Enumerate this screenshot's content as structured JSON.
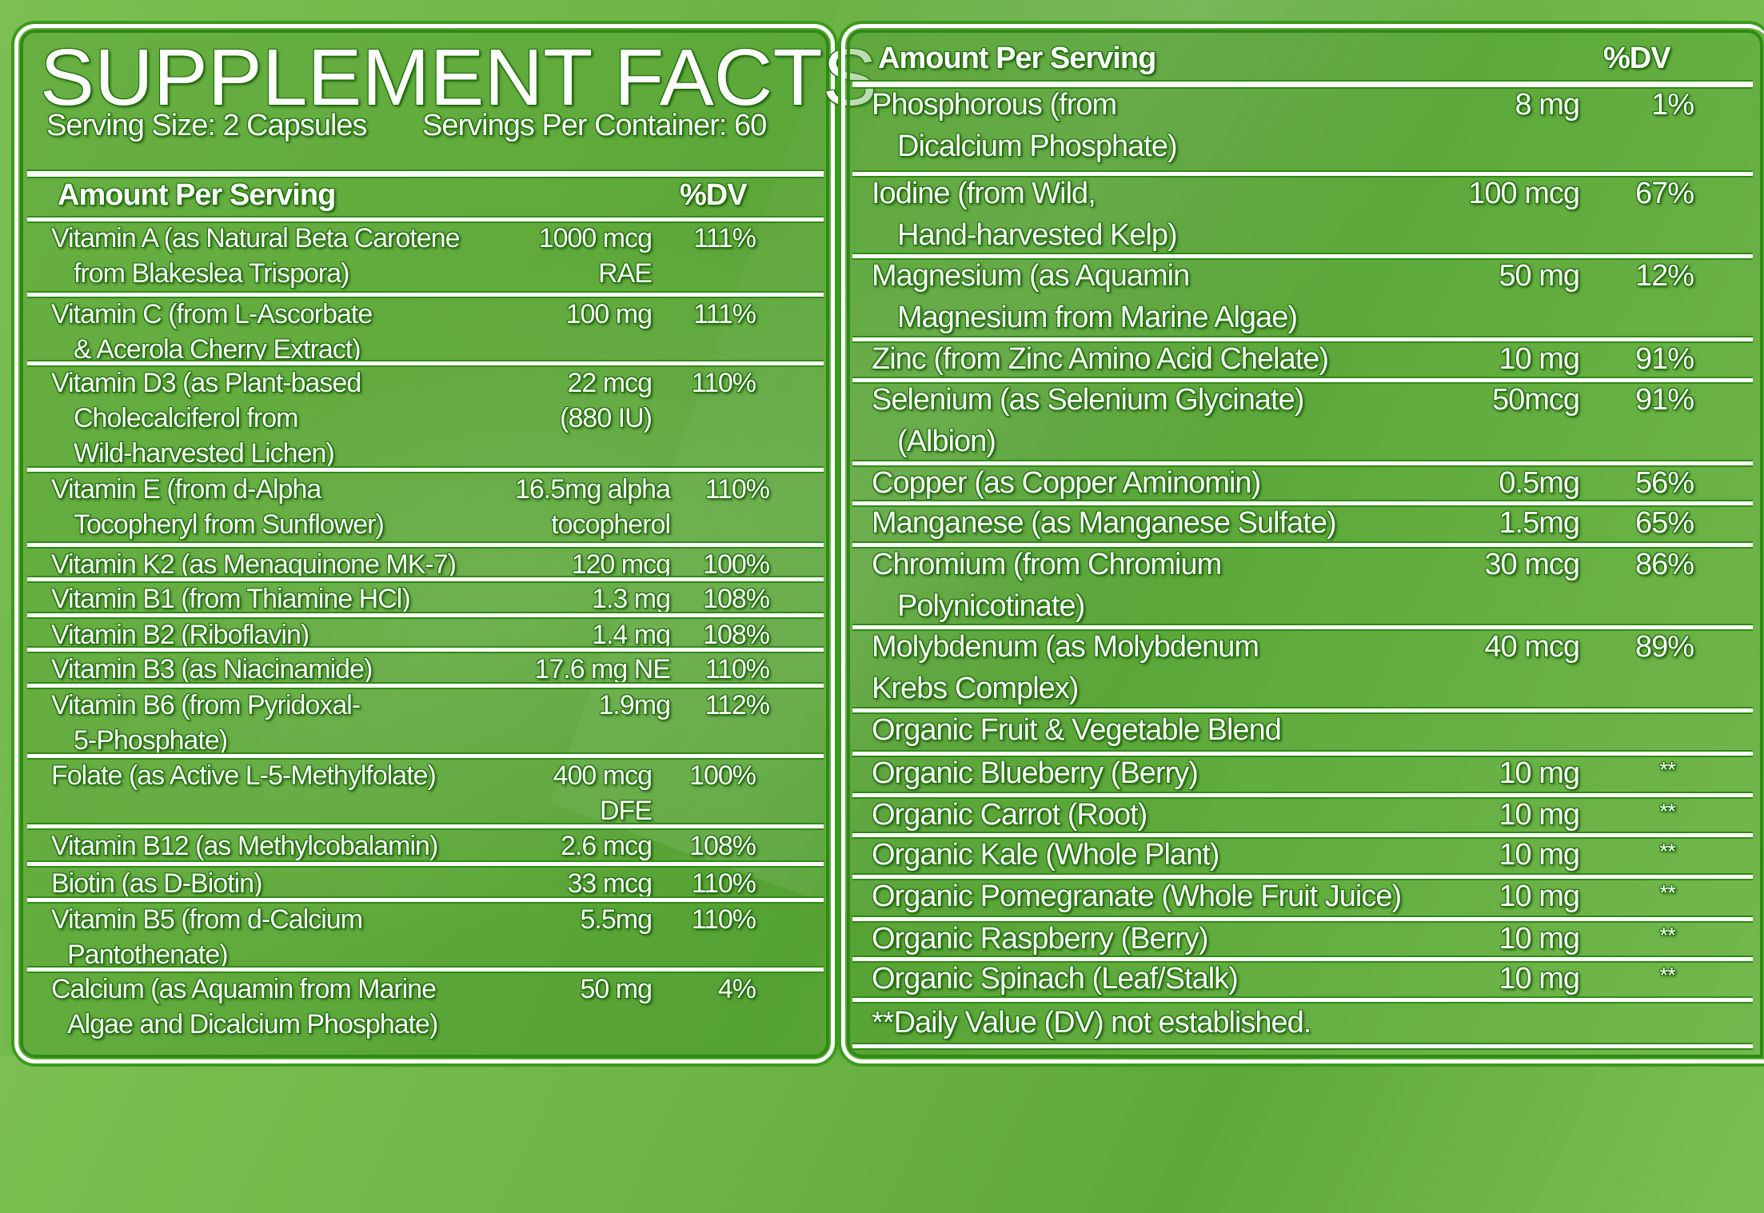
{
  "label": {
    "title": "SUPPLEMENT FACTS",
    "serving_size": "Serving Size: 2 Capsules",
    "servings_per_container": "Servings Per Container: 60",
    "colors": {
      "background": "#6fb547",
      "text": "#ffffff",
      "outline": "#2e8a14"
    }
  },
  "left_table": {
    "header": {
      "amount": "Amount Per Serving",
      "dv": "%DV"
    },
    "rows": [
      {
        "name": [
          "Vitamin A (as Natural Beta Carotene",
          "from Blakeslea Trispora)"
        ],
        "amount": [
          "1000 mcg",
          "RAE"
        ],
        "dv": "111%"
      },
      {
        "name": [
          "Vitamin C (from L-Ascorbate",
          "& Acerola Cherry Extract)"
        ],
        "amount": [
          "100 mg"
        ],
        "dv": "111%"
      },
      {
        "name": [
          "Vitamin D3 (as Plant-based",
          "Cholecalciferol from",
          "Wild-harvested Lichen)"
        ],
        "amount": [
          "22 mcg",
          "(880 IU)"
        ],
        "dv": "110%"
      },
      {
        "name": [
          "Vitamin E (from d-Alpha",
          "Tocopheryl from Sunflower)"
        ],
        "amount": [
          "16.5mg alpha",
          "tocopherol"
        ],
        "dv": "110%"
      },
      {
        "name": [
          "Vitamin K2 (as Menaquinone MK-7)"
        ],
        "amount": [
          "120 mcg"
        ],
        "dv": "100%"
      },
      {
        "name": [
          "Vitamin B1 (from Thiamine HCl)"
        ],
        "amount": [
          "1.3 mg"
        ],
        "dv": "108%"
      },
      {
        "name": [
          "Vitamin B2 (Riboflavin)"
        ],
        "amount": [
          "1.4 mg"
        ],
        "dv": "108%"
      },
      {
        "name": [
          "Vitamin B3 (as Niacinamide)"
        ],
        "amount": [
          "17.6 mg NE"
        ],
        "dv": "110%"
      },
      {
        "name": [
          "Vitamin B6 (from Pyridoxal-",
          "5-Phosphate)"
        ],
        "amount": [
          "1.9mg"
        ],
        "dv": "112%"
      },
      {
        "name": [
          "Folate (as Active L-5-Methylfolate)"
        ],
        "amount": [
          "400 mcg",
          "DFE"
        ],
        "dv": "100%"
      },
      {
        "name": [
          "Vitamin B12 (as Methylcobalamin)"
        ],
        "amount": [
          "2.6 mcg"
        ],
        "dv": "108%"
      },
      {
        "name": [
          "Biotin (as D-Biotin)"
        ],
        "amount": [
          "33 mcg"
        ],
        "dv": "110%"
      },
      {
        "name": [
          "Vitamin B5 (from d-Calcium",
          "Pantothenate)"
        ],
        "amount": [
          "5.5mg"
        ],
        "dv": "110%"
      },
      {
        "name": [
          "Calcium (as Aquamin from Marine",
          "Algae and Dicalcium Phosphate)"
        ],
        "amount": [
          "50 mg"
        ],
        "dv": "4%"
      }
    ]
  },
  "right_table": {
    "header": {
      "amount": "Amount Per Serving",
      "dv": "%DV"
    },
    "rows": [
      {
        "name": [
          "Phosphorous (from",
          "Dicalcium Phosphate)"
        ],
        "amount": "8 mg",
        "dv": "1%"
      },
      {
        "name": [
          "Iodine (from Wild,",
          "Hand-harvested Kelp)"
        ],
        "amount": "100 mcg",
        "dv": "67%"
      },
      {
        "name": [
          "Magnesium (as Aquamin",
          "Magnesium from Marine Algae)"
        ],
        "amount": "50 mg",
        "dv": "12%"
      },
      {
        "name": [
          "Zinc (from Zinc Amino Acid Chelate)"
        ],
        "amount": "10 mg",
        "dv": "91%"
      },
      {
        "name": [
          "Selenium (as Selenium Glycinate)",
          "(Albion)"
        ],
        "amount": "50mcg",
        "dv": "91%"
      },
      {
        "name": [
          "Copper (as Copper Aminomin)"
        ],
        "amount": "0.5mg",
        "dv": "56%"
      },
      {
        "name": [
          "Manganese (as Manganese Sulfate)"
        ],
        "amount": "1.5mg",
        "dv": "65%"
      },
      {
        "name": [
          "Chromium (from Chromium",
          "Polynicotinate)"
        ],
        "amount": "30 mcg",
        "dv": "86%"
      },
      {
        "name": [
          "Molybdenum (as Molybdenum",
          "Krebs Complex)"
        ],
        "amount": "40 mcg",
        "dv": "89%"
      },
      {
        "name": [
          "Organic Fruit & Vegetable Blend"
        ],
        "amount": "",
        "dv": ""
      },
      {
        "name": [
          "Organic Blueberry (Berry)"
        ],
        "amount": "10 mg",
        "dv": "**"
      },
      {
        "name": [
          "Organic Carrot (Root)"
        ],
        "amount": "10 mg",
        "dv": "**"
      },
      {
        "name": [
          "Organic Kale (Whole Plant)"
        ],
        "amount": "10 mg",
        "dv": "**"
      },
      {
        "name": [
          "Organic Pomegranate (Whole Fruit Juice)"
        ],
        "amount": "10 mg",
        "dv": "**"
      },
      {
        "name": [
          "Organic Raspberry (Berry)"
        ],
        "amount": "10 mg",
        "dv": "**"
      },
      {
        "name": [
          "Organic Spinach (Leaf/Stalk)"
        ],
        "amount": "10 mg",
        "dv": "**"
      }
    ],
    "footnote": "**Daily Value (DV) not established."
  }
}
